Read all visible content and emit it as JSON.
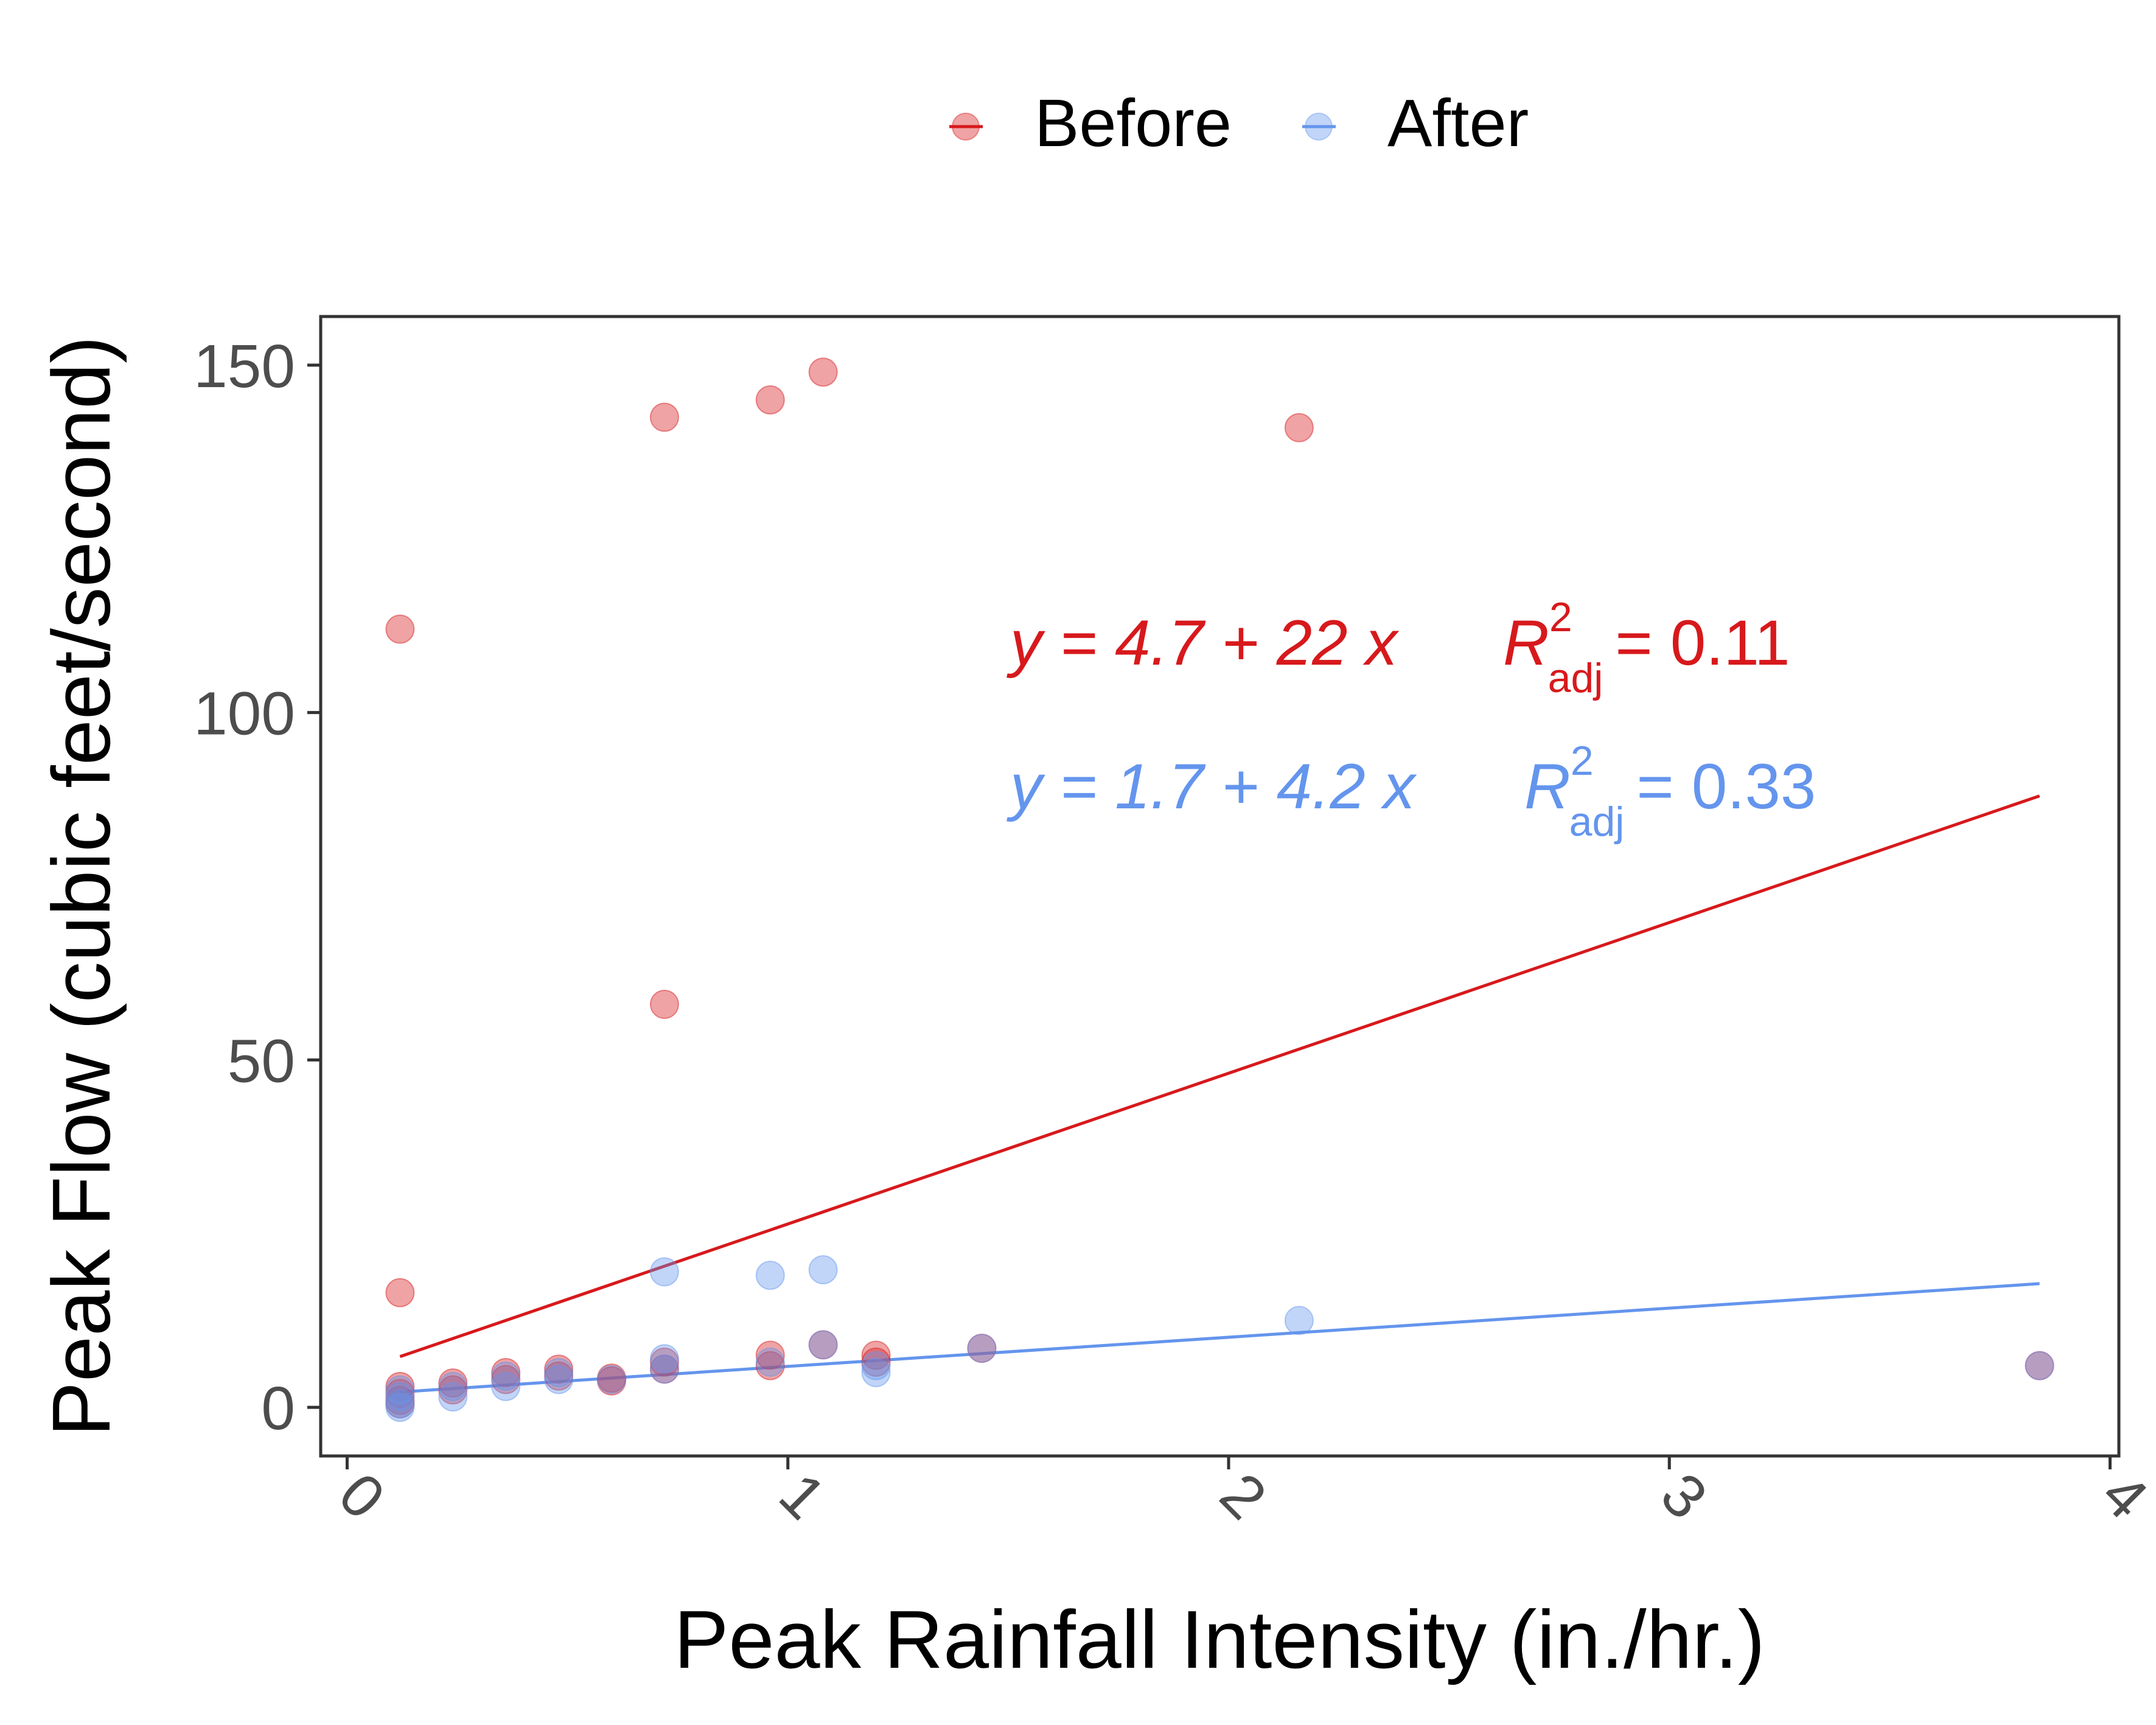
{
  "chart_data": {
    "type": "scatter",
    "title": "",
    "xlabel": "Peak Rainfall Intensity (in./hr.)",
    "ylabel": "Peak Flow (cubic feet/second)",
    "xlim": [
      -0.06,
      4.02
    ],
    "ylim": [
      -7,
      157
    ],
    "x_ticks": [
      0,
      1,
      2,
      3,
      4
    ],
    "y_ticks": [
      0,
      50,
      100,
      150
    ],
    "x_tick_labels": [
      "0",
      "1",
      "2",
      "3",
      "4"
    ],
    "y_tick_labels": [
      "0",
      "50",
      "100",
      "150"
    ],
    "grid": false,
    "legend_position": "top",
    "series": [
      {
        "name": "Before",
        "color": "#d7191c",
        "points": [
          [
            0.12,
            112
          ],
          [
            0.12,
            16.5
          ],
          [
            0.12,
            3
          ],
          [
            0.12,
            2
          ],
          [
            0.12,
            1
          ],
          [
            0.12,
            0.5
          ],
          [
            0.24,
            3.5
          ],
          [
            0.24,
            2.5
          ],
          [
            0.36,
            5
          ],
          [
            0.36,
            4
          ],
          [
            0.48,
            5.5
          ],
          [
            0.48,
            4.5
          ],
          [
            0.6,
            4.2
          ],
          [
            0.6,
            3.8
          ],
          [
            0.72,
            142.5
          ],
          [
            0.72,
            58
          ],
          [
            0.72,
            6.5
          ],
          [
            0.72,
            5.5
          ],
          [
            0.96,
            145
          ],
          [
            0.96,
            7.5
          ],
          [
            0.96,
            6
          ],
          [
            1.08,
            149
          ],
          [
            1.08,
            9
          ],
          [
            1.2,
            7.5
          ],
          [
            1.2,
            6.5
          ],
          [
            1.44,
            8.5
          ],
          [
            2.16,
            141
          ],
          [
            3.84,
            6
          ]
        ]
      },
      {
        "name": "After",
        "color": "#6495ed",
        "points": [
          [
            0.12,
            2.5
          ],
          [
            0.12,
            1.5
          ],
          [
            0.12,
            0.5
          ],
          [
            0.12,
            0
          ],
          [
            0.24,
            3
          ],
          [
            0.24,
            1.5
          ],
          [
            0.36,
            3
          ],
          [
            0.36,
            4.5
          ],
          [
            0.48,
            4
          ],
          [
            0.48,
            5
          ],
          [
            0.6,
            4
          ],
          [
            0.72,
            19.5
          ],
          [
            0.72,
            7
          ],
          [
            0.72,
            5.5
          ],
          [
            0.96,
            19
          ],
          [
            0.96,
            6.5
          ],
          [
            1.08,
            19.8
          ],
          [
            1.08,
            9
          ],
          [
            1.2,
            5
          ],
          [
            1.2,
            6
          ],
          [
            1.44,
            8.5
          ],
          [
            2.16,
            12.5
          ],
          [
            3.84,
            6
          ]
        ]
      }
    ],
    "fits": [
      {
        "series": "Before",
        "intercept": 4.7,
        "slope": 22,
        "x_range": [
          0.12,
          3.84
        ],
        "y_range": [
          7.3,
          88
        ],
        "equation": "y = 4.7 + 22 x",
        "r2_label": "R",
        "r2_superscript": "2",
        "r2_subscript": "adj",
        "r2_value": "= 0.11",
        "color": "#d7191c"
      },
      {
        "series": "After",
        "intercept": 1.7,
        "slope": 4.2,
        "x_range": [
          0.12,
          3.84
        ],
        "y_range": [
          2.2,
          17.8
        ],
        "equation": "y = 1.7 + 4.2 x",
        "r2_label": "R",
        "r2_superscript": "2",
        "r2_subscript": "adj",
        "r2_value": "= 0.33",
        "color": "#6495ed"
      }
    ]
  },
  "legend": {
    "items": [
      {
        "label": "Before",
        "color": "#d7191c"
      },
      {
        "label": "After",
        "color": "#6495ed"
      }
    ]
  }
}
